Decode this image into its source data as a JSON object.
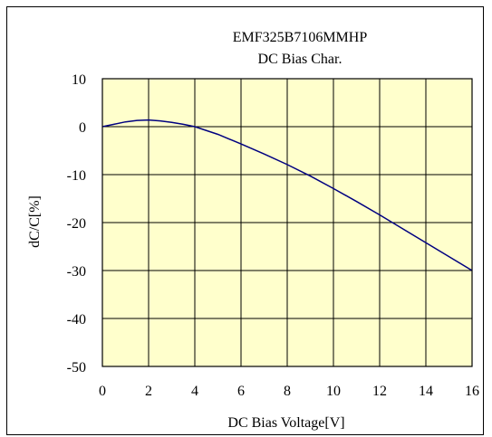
{
  "chart_data": {
    "type": "line",
    "title": "EMF325B7106MMHP",
    "subtitle": "DC Bias Char.",
    "xlabel": "DC Bias Voltage[V]",
    "ylabel": "dC/C[%]",
    "xlim": [
      0,
      16
    ],
    "ylim": [
      -50,
      10
    ],
    "x_ticks": [
      "0",
      "2",
      "4",
      "6",
      "8",
      "10",
      "12",
      "14",
      "16"
    ],
    "y_ticks": [
      "10",
      "0",
      "-10",
      "-20",
      "-30",
      "-40",
      "-50"
    ],
    "grid": true,
    "plot_background": "#ffffcc",
    "line_color": "#000080",
    "series": [
      {
        "x": [
          0,
          0.5,
          1,
          1.5,
          2,
          2.5,
          3,
          3.5,
          4,
          5,
          6,
          7,
          8,
          9,
          10,
          11,
          12,
          13,
          14,
          15,
          16
        ],
        "values": [
          0,
          0.5,
          1.0,
          1.3,
          1.4,
          1.2,
          0.9,
          0.5,
          0,
          -1.6,
          -3.6,
          -5.7,
          -7.9,
          -10.3,
          -12.9,
          -15.6,
          -18.4,
          -21.3,
          -24.2,
          -27.1,
          -30.0
        ]
      }
    ]
  }
}
